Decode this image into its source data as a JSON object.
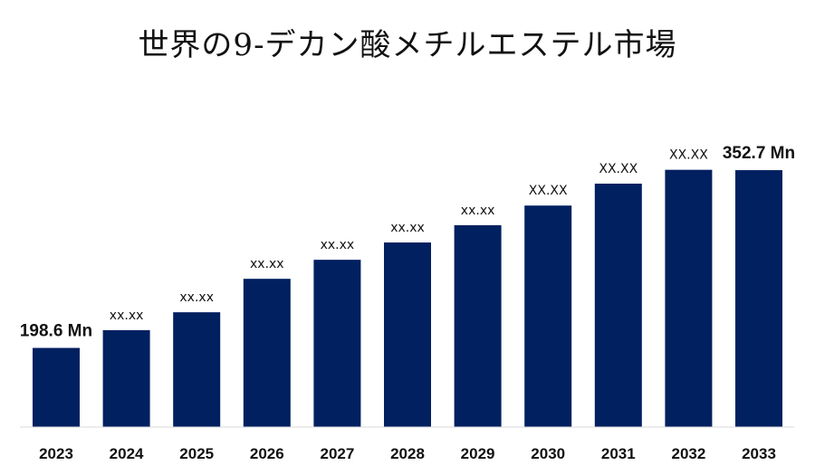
{
  "chart_data": {
    "type": "bar",
    "title": "世界の9-デカン酸メチルエステル市場",
    "categories": [
      "2023",
      "2024",
      "2025",
      "2026",
      "2027",
      "2028",
      "2029",
      "2030",
      "2031",
      "2032",
      "2033"
    ],
    "values": [
      198.6,
      214.0,
      229.5,
      258.5,
      275.0,
      290.0,
      305.0,
      322.0,
      341.0,
      353.0,
      352.7
    ],
    "data_labels": [
      "198.6 Mn",
      "xx.xx",
      "xx.xx",
      "xx.xx",
      "xx.xx",
      "xx.xx",
      "xx.xx",
      "XX.XX",
      "XX.XX",
      "XX.XX",
      "352.7 Mn"
    ],
    "ylim": [
      130,
      370
    ],
    "grid": false,
    "legend": "none",
    "bar_color": "#002060"
  }
}
